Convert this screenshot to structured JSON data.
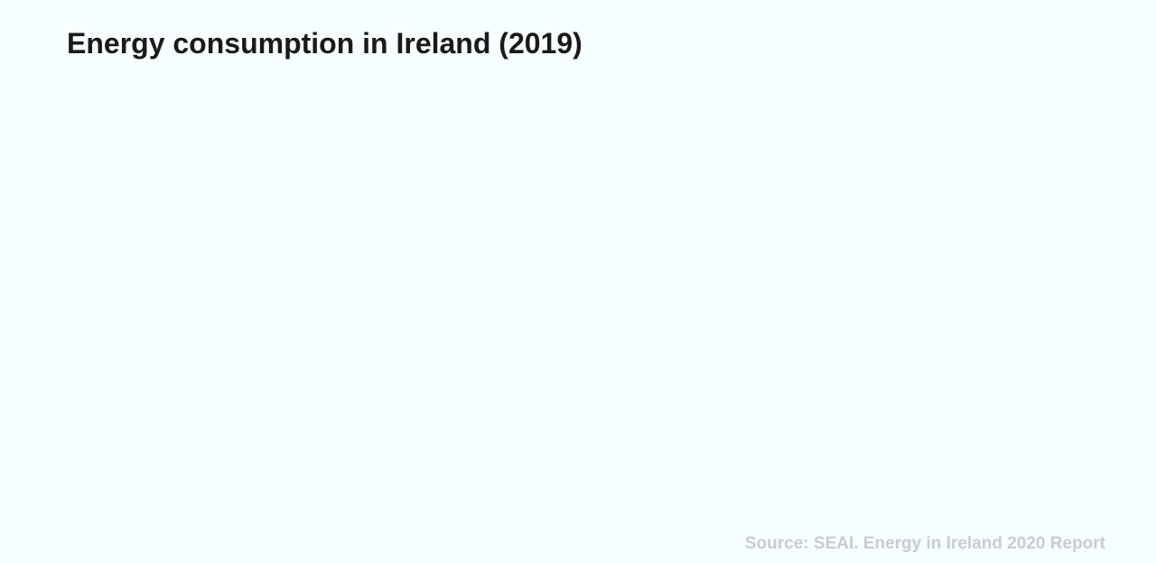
{
  "slide": {
    "title": "Energy consumption in Ireland (2019)",
    "source": "Source: SEAI. Energy in Ireland 2020 Report"
  }
}
